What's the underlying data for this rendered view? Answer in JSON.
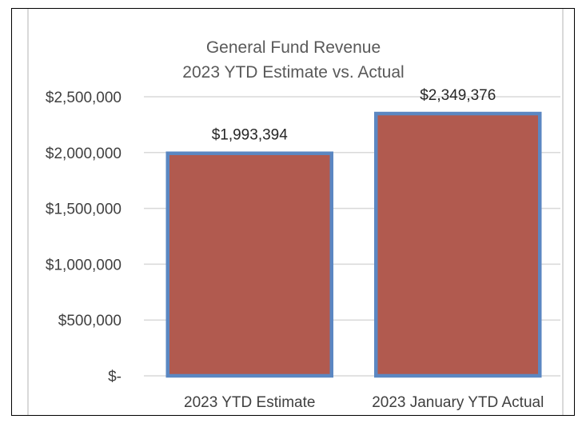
{
  "chart_data": {
    "type": "bar",
    "title": "General Fund Revenue",
    "subtitle": "2023 YTD Estimate vs. Actual",
    "categories": [
      "2023 YTD Estimate",
      "2023 January YTD Actual"
    ],
    "values": [
      1993394,
      2349376
    ],
    "data_labels": [
      "$1,993,394",
      "$2,349,376"
    ],
    "ylim": [
      0,
      2500000
    ],
    "yticks": [
      0,
      500000,
      1000000,
      1500000,
      2000000,
      2500000
    ],
    "ytick_labels": [
      "$-",
      "$500,000",
      "$1,000,000",
      "$1,500,000",
      "$2,000,000",
      "$2,500,000"
    ],
    "xlabel": "",
    "ylabel": "",
    "grid": true,
    "legend": "none",
    "colors": {
      "bar_fill": "#b15a4f",
      "bar_border": "#5b87c2",
      "gridline": "#d9d9d9"
    }
  }
}
